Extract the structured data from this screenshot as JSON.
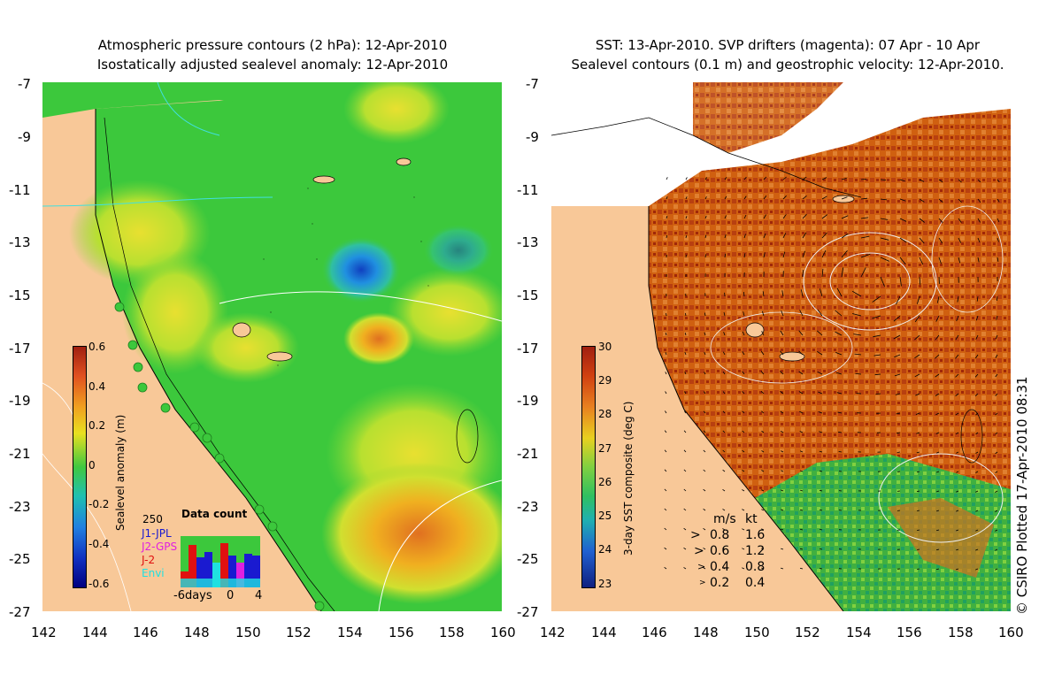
{
  "left_panel": {
    "title_line1": "Atmospheric pressure contours (2 hPa): 12-Apr-2010",
    "title_line2": "Isostatically adjusted sealevel anomaly: 12-Apr-2010",
    "colorbar": {
      "label": "Sealevel anomaly (m)",
      "ticks": [
        "0.6",
        "0.4",
        "0.2",
        "0",
        "-0.2",
        "-0.4",
        "-0.6"
      ]
    },
    "data_count": {
      "title": "Data count",
      "max_label": "250",
      "legend": [
        {
          "name": "J1-JPL",
          "color": "#1a1ad0"
        },
        {
          "name": "J2-GPS",
          "color": "#e020e0"
        },
        {
          "name": "J-2",
          "color": "#e01010"
        },
        {
          "name": "Envi",
          "color": "#20e0e0"
        }
      ],
      "axis_labels": [
        "-6days",
        "0",
        "4"
      ]
    }
  },
  "right_panel": {
    "title_line1": "SST: 13-Apr-2010. SVP drifters (magenta): 07 Apr - 10 Apr",
    "title_line2": "Sealevel contours (0.1 m) and geostrophic velocity: 12-Apr-2010.",
    "colorbar": {
      "label": "3-day SST composite (deg C)",
      "ticks": [
        "30",
        "29",
        "28",
        "27",
        "26",
        "25",
        "24",
        "23"
      ]
    },
    "velocity_legend": {
      "header_ms": "m/s",
      "header_kt": "kt",
      "rows": [
        {
          "ms": "0.8",
          "kt": "1.6"
        },
        {
          "ms": "0.6",
          "kt": "1.2"
        },
        {
          "ms": "0.4",
          "kt": "0.8"
        },
        {
          "ms": "0.2",
          "kt": "0.4"
        }
      ]
    }
  },
  "axes": {
    "y_ticks": [
      "-7",
      "-9",
      "-11",
      "-13",
      "-15",
      "-17",
      "-19",
      "-21",
      "-23",
      "-25",
      "-27"
    ],
    "x_ticks": [
      "142",
      "144",
      "146",
      "148",
      "150",
      "152",
      "154",
      "156",
      "158",
      "160"
    ]
  },
  "credit": "© CSIRO Plotted 17-Apr-2010 08:31",
  "colors": {
    "land": "#f8c898",
    "sla_green": "#3cc83c",
    "sst_orange": "#d06010",
    "sst_dark": "#a02808"
  }
}
